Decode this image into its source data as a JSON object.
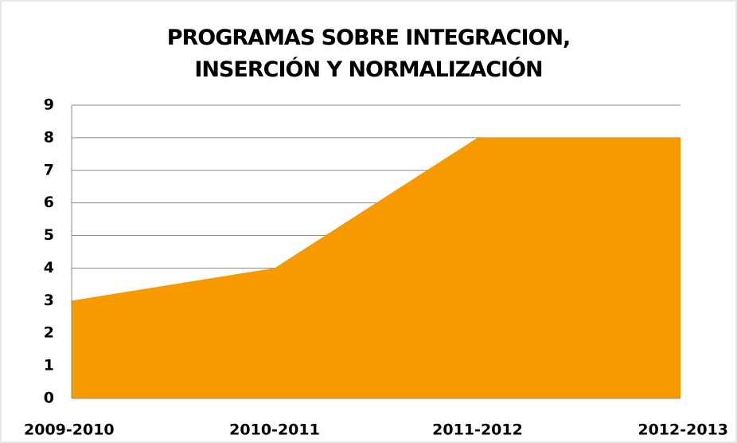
{
  "chart_data": {
    "type": "area",
    "title": "PROGRAMAS SOBRE INTEGRACION, INSERCIÓN Y NORMALIZACIÓN",
    "categories": [
      "2009-2010",
      "2010-2011",
      "2011-2012",
      "2012-2013"
    ],
    "values": [
      3,
      4,
      8,
      8
    ],
    "color": "#f79a00",
    "ylim": [
      0,
      9
    ],
    "yticks": [
      0,
      1,
      2,
      3,
      4,
      5,
      6,
      7,
      8,
      9
    ],
    "grid": true
  }
}
